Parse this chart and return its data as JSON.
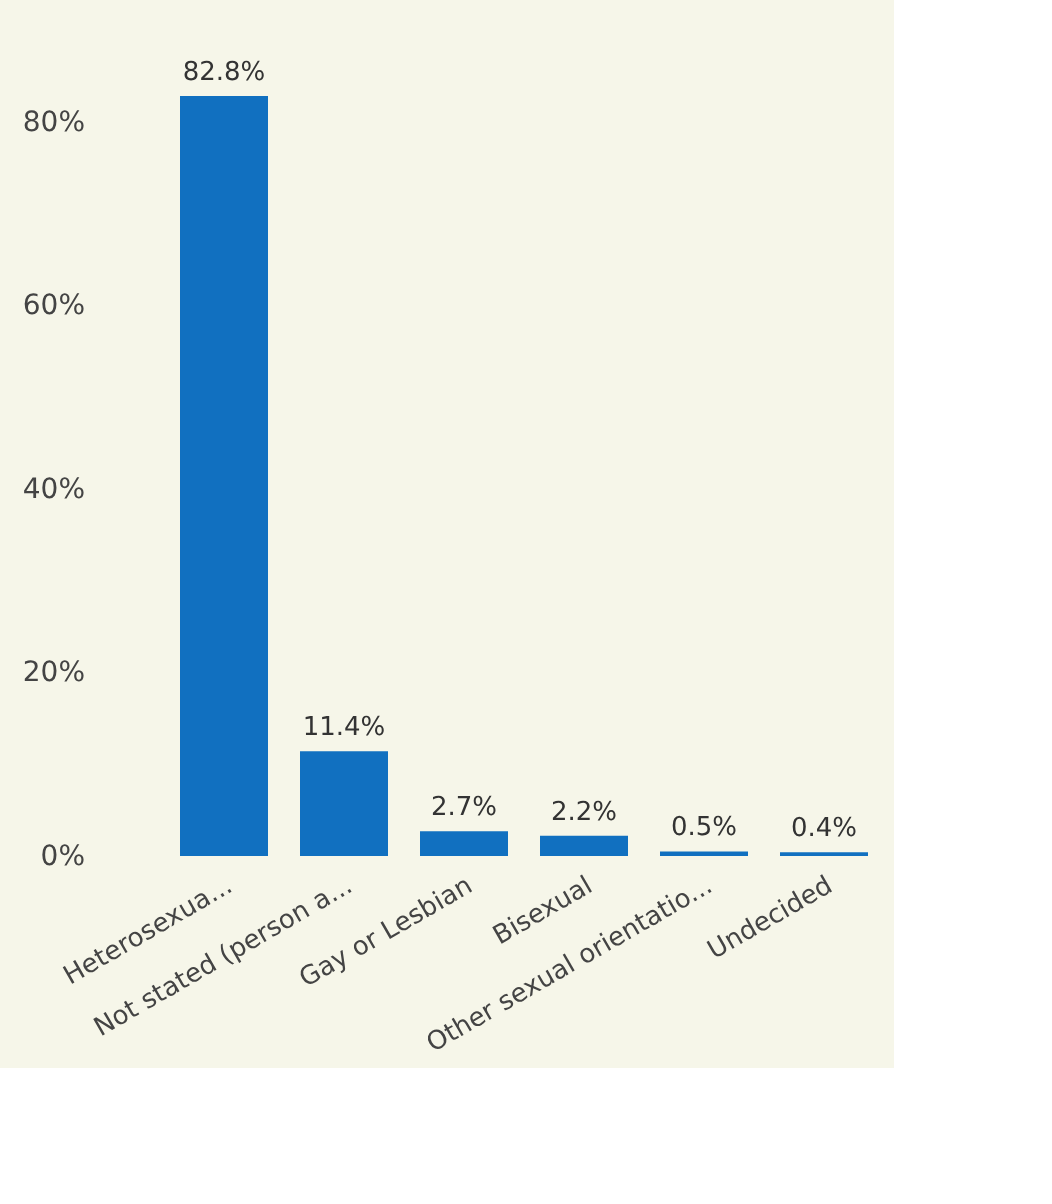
{
  "chart_data": {
    "type": "bar",
    "categories": [
      "Heterosexua...",
      "Not stated (person a...",
      "Gay or Lesbian",
      "Bisexual",
      "Other sexual orientatio...",
      "Undecided"
    ],
    "values": [
      82.8,
      11.4,
      2.7,
      2.2,
      0.5,
      0.4
    ],
    "value_labels": [
      "82.8%",
      "11.4%",
      "2.7%",
      "2.2%",
      "0.5%",
      "0.4%"
    ],
    "color": "#1170c0",
    "ylim": [
      0,
      82.8
    ],
    "yticks": [
      {
        "value": 0,
        "label": "0%"
      },
      {
        "value": 20,
        "label": "20%"
      },
      {
        "value": 40,
        "label": "40%"
      },
      {
        "value": 60,
        "label": "60%"
      },
      {
        "value": 80,
        "label": "80%"
      }
    ],
    "grid": false
  }
}
